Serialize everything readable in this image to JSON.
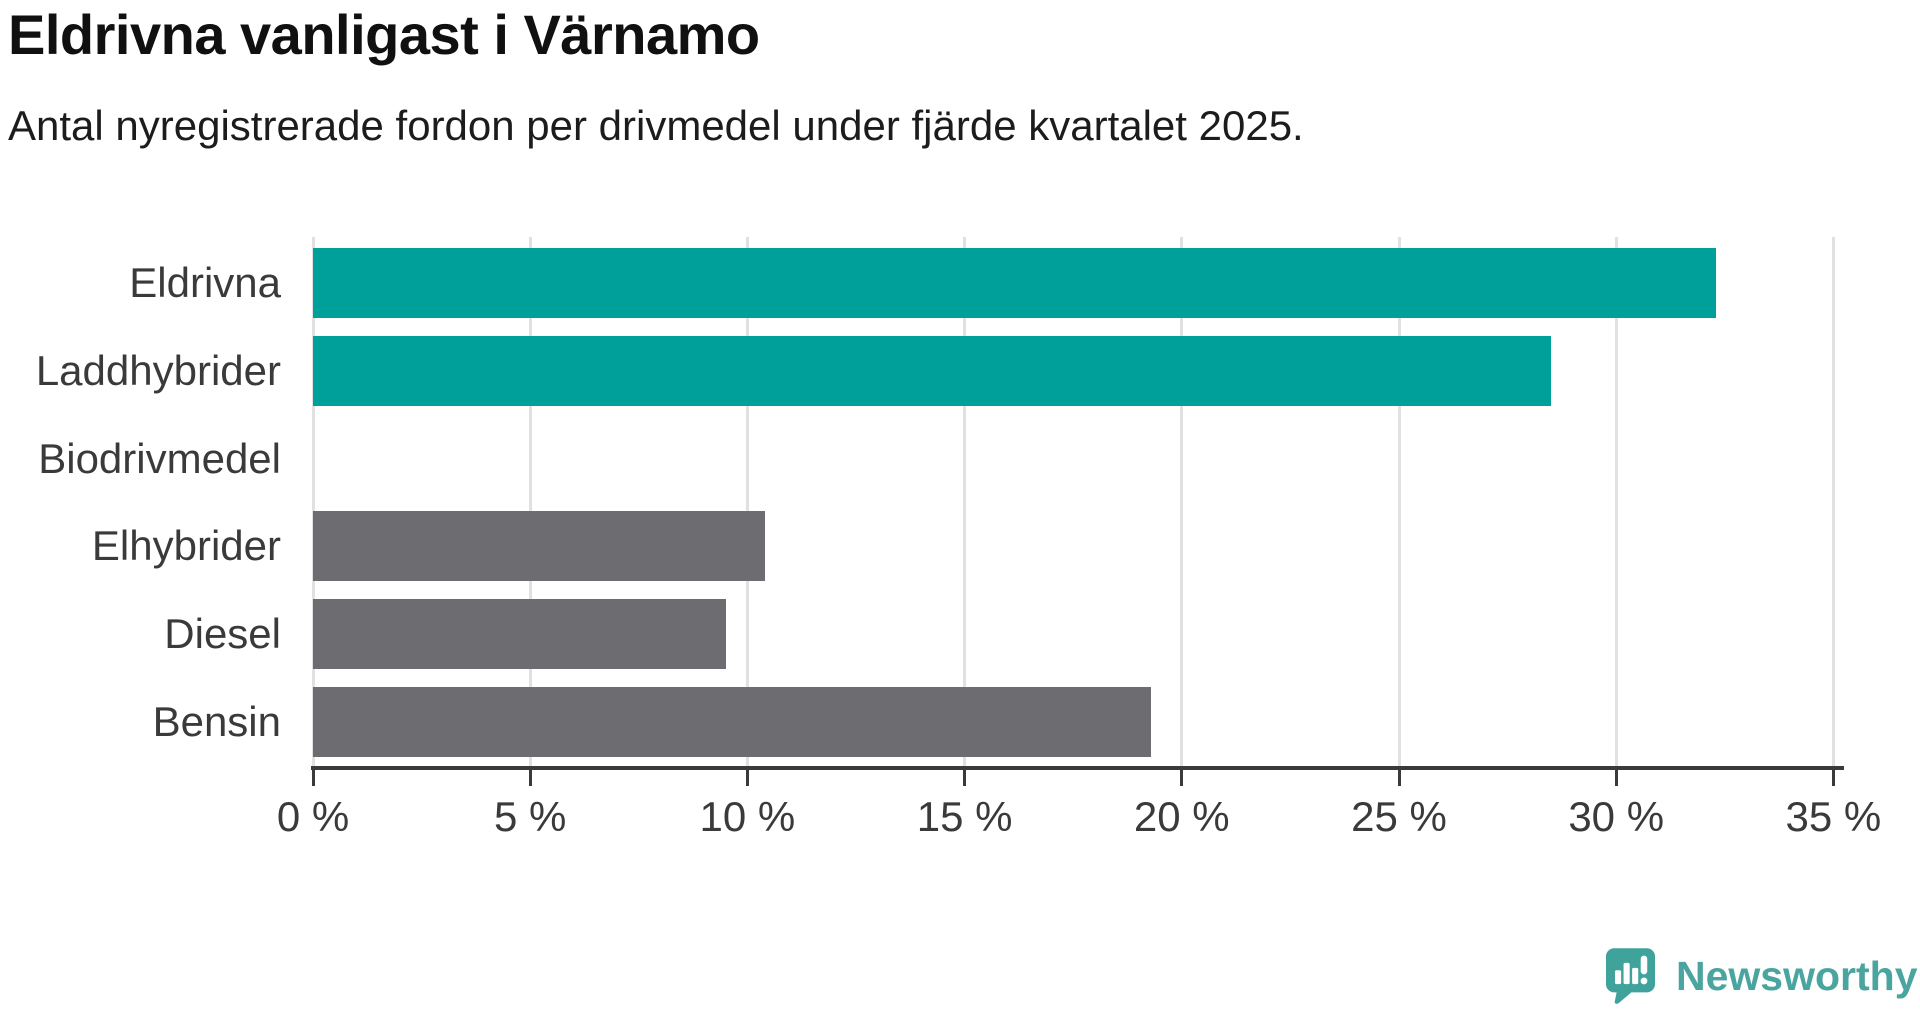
{
  "header": {
    "title": "Eldrivna vanligast i Värnamo",
    "subtitle": "Antal nyregistrerade fordon per drivmedel under fjärde kvartalet 2025."
  },
  "chart_data": {
    "type": "bar",
    "orientation": "horizontal",
    "title": "Eldrivna vanligast i Värnamo",
    "subtitle": "Antal nyregistrerade fordon per drivmedel under fjärde kvartalet 2025.",
    "categories": [
      "Eldrivna",
      "Laddhybrider",
      "Biodrivmedel",
      "Elhybrider",
      "Diesel",
      "Bensin"
    ],
    "values": [
      32.3,
      28.5,
      0,
      10.4,
      9.5,
      19.3
    ],
    "unit": "%",
    "bar_colors": [
      "#00a09a",
      "#00a09a",
      "#6c6c71",
      "#6c6c71",
      "#6c6c71",
      "#6c6c71"
    ],
    "xlabel": "",
    "ylabel": "",
    "xlim": [
      0,
      35
    ],
    "xticks": [
      0,
      5,
      10,
      15,
      20,
      25,
      30,
      35
    ],
    "xtick_labels": [
      "0 %",
      "5 %",
      "10 %",
      "15 %",
      "20 %",
      "25 %",
      "30 %",
      "35 %"
    ],
    "grid": true,
    "legend": false
  },
  "colors": {
    "electric_series": "#00a09a",
    "fossil_series": "#6c6c71",
    "gridline": "#e1e1e1",
    "axis": "#3a3a3a",
    "text": "#3a3a3a",
    "logo": "#4aa49f",
    "logo_icon": "#3fa29b"
  },
  "footer": {
    "brand": "Newsworthy"
  }
}
